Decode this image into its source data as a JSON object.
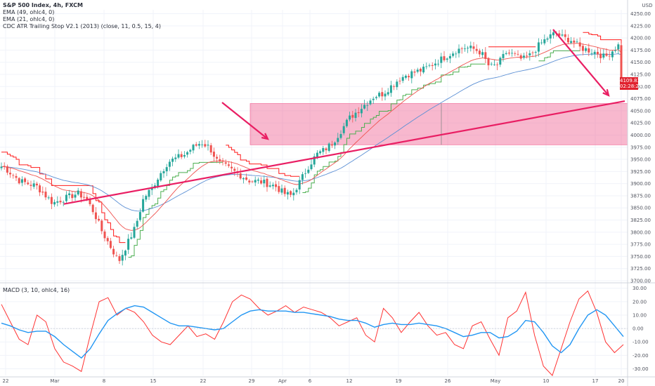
{
  "legend": {
    "main_title": "S&P 500 Index, 4h, FXCM",
    "ema1": "EMA (49, ohlc4, 0)",
    "ema2": "EMA (21, ohlc4, 0)",
    "atr": "CDC ATR Trailing Stop V2.1 (2013) (close, 11, 0.5, 15, 4)",
    "macd": "MACD (3, 10, ohlc4, 16)"
  },
  "price_axis": {
    "currency": "USD",
    "ticks": [
      "4250.00",
      "4225.00",
      "4200.00",
      "4175.00",
      "4150.00",
      "4125.00",
      "4100.00",
      "4075.00",
      "4050.00",
      "4025.00",
      "4000.00",
      "3975.00",
      "3950.00",
      "3925.00",
      "3900.00",
      "3875.00",
      "3850.00",
      "3825.00",
      "3800.00",
      "3775.00",
      "3750.00",
      "3725.00",
      "3700.00"
    ]
  },
  "macd_axis": {
    "ticks": [
      "30.00",
      "20.00",
      "10.00",
      "0.00",
      "-10.00",
      "-20.00",
      "-30.00"
    ]
  },
  "time_axis": {
    "ticks": [
      "22",
      "Mar",
      "8",
      "15",
      "22",
      "29",
      "Apr",
      "6",
      "12",
      "19",
      "26",
      "May",
      "10",
      "17",
      "20"
    ]
  },
  "last_price": {
    "value": "4109.83",
    "countdown": "02:28:27"
  },
  "colors": {
    "candle_up": "#26a69a",
    "candle_down": "#ef5350",
    "ema49": "#5b8fd4",
    "ema21": "#ef5350",
    "atr_bull": "#4caf50",
    "atr_bear": "#ff1a1a",
    "annotation": "#e91e63",
    "zone": "#f06292",
    "macd_line": "#ff3333",
    "signal_line": "#2196f3",
    "price_badge": "#e0212e"
  },
  "chart_data": [
    {
      "type": "candlestick",
      "title": "S&P 500 Index, 4h, FXCM",
      "xlabel": "",
      "ylabel": "USD",
      "ylim": [
        3700,
        4260
      ],
      "x_ticks": [
        "22",
        "Mar",
        "8",
        "15",
        "22",
        "29",
        "Apr",
        "6",
        "12",
        "19",
        "26",
        "May",
        "10",
        "17",
        "20"
      ],
      "close_path": [
        [
          "Feb 20",
          3935
        ],
        [
          "Feb 22",
          3905
        ],
        [
          "Feb 24",
          3895
        ],
        [
          "Feb 26",
          3860
        ],
        [
          "Mar 1",
          3880
        ],
        [
          "Mar 2",
          3870
        ],
        [
          "Mar 3",
          3840
        ],
        [
          "Mar 4",
          3800
        ],
        [
          "Mar 5",
          3770
        ],
        [
          "Mar 6",
          3740
        ],
        [
          "Mar 8",
          3810
        ],
        [
          "Mar 9",
          3870
        ],
        [
          "Mar 10",
          3890
        ],
        [
          "Mar 11",
          3920
        ],
        [
          "Mar 12",
          3945
        ],
        [
          "Mar 14",
          3960
        ],
        [
          "Mar 15",
          3975
        ],
        [
          "Mar 16",
          3985
        ],
        [
          "Mar 17",
          3975
        ],
        [
          "Mar 18",
          3945
        ],
        [
          "Mar 19",
          3935
        ],
        [
          "Mar 20",
          3925
        ],
        [
          "Mar 21",
          3915
        ],
        [
          "Mar 22",
          3905
        ],
        [
          "Mar 23",
          3905
        ],
        [
          "Mar 24",
          3900
        ],
        [
          "Mar 25",
          3895
        ],
        [
          "Mar 26",
          3880
        ],
        [
          "Mar 27",
          3875
        ],
        [
          "Mar 28",
          3905
        ],
        [
          "Mar 29",
          3935
        ],
        [
          "Mar 30",
          3960
        ],
        [
          "Mar 31",
          3970
        ],
        [
          "Apr 1",
          3985
        ],
        [
          "Apr 2",
          4010
        ],
        [
          "Apr 3",
          4035
        ],
        [
          "Apr 5",
          4065
        ],
        [
          "Apr 6",
          4080
        ],
        [
          "Apr 7",
          4085
        ],
        [
          "Apr 8",
          4100
        ],
        [
          "Apr 9",
          4115
        ],
        [
          "Apr 10",
          4125
        ],
        [
          "Apr 12",
          4135
        ],
        [
          "Apr 13",
          4145
        ],
        [
          "Apr 14",
          4155
        ],
        [
          "Apr 15",
          4165
        ],
        [
          "Apr 16",
          4175
        ],
        [
          "Apr 17",
          4180
        ],
        [
          "Apr 18",
          4178
        ],
        [
          "Apr 19",
          4170
        ],
        [
          "Apr 20",
          4140
        ],
        [
          "Apr 21",
          4145
        ],
        [
          "Apr 22",
          4170
        ],
        [
          "Apr 23",
          4165
        ],
        [
          "Apr 24",
          4155
        ],
        [
          "Apr 25",
          4165
        ],
        [
          "Apr 26",
          4185
        ],
        [
          "Apr 27",
          4200
        ],
        [
          "Apr 28",
          4210
        ],
        [
          "Apr 29",
          4200
        ],
        [
          "Apr 30",
          4195
        ],
        [
          "May 1",
          4180
        ],
        [
          "May 2",
          4175
        ],
        [
          "May 3",
          4170
        ],
        [
          "May 4",
          4160
        ],
        [
          "May 5",
          4175
        ],
        [
          "May 6",
          4190
        ],
        [
          "May 7",
          4220
        ],
        [
          "May 8",
          4235
        ],
        [
          "May 9",
          4230
        ],
        [
          "May 10",
          4205
        ],
        [
          "May 11",
          4165
        ],
        [
          "May 12",
          4120
        ],
        [
          "May 13",
          4080
        ],
        [
          "May 14",
          4105
        ],
        [
          "May 15",
          4150
        ],
        [
          "May 16",
          4160
        ],
        [
          "May 17",
          4175
        ],
        [
          "May 18",
          4145
        ],
        [
          "May 19",
          4100
        ],
        [
          "May 20",
          4109.83
        ]
      ],
      "support_zone": {
        "from": 3980,
        "to": 4065
      },
      "trendline": {
        "start": [
          "Feb 28",
          3866
        ],
        "end": [
          "May 20",
          4070
        ]
      },
      "annotations": [
        "down-arrow Mar 28",
        "down-arrow May 16",
        "range arrow Apr 26"
      ],
      "last_value": 4109.83
    },
    {
      "type": "line",
      "title": "MACD (3, 10, ohlc4, 16)",
      "ylim": [
        -35,
        33
      ],
      "series": [
        {
          "name": "MACD",
          "values": [
            18,
            5,
            -8,
            -12,
            10,
            5,
            -15,
            -25,
            -28,
            -32,
            -5,
            20,
            23,
            10,
            15,
            12,
            5,
            -5,
            -10,
            -12,
            -5,
            2,
            -6,
            -4,
            -8,
            5,
            20,
            25,
            22,
            15,
            10,
            13,
            17,
            12,
            16,
            14,
            12,
            8,
            2,
            5,
            8,
            -5,
            -10,
            15,
            8,
            -3,
            5,
            12,
            2,
            -5,
            -3,
            -12,
            -15,
            2,
            5,
            -8,
            -20,
            8,
            13,
            27,
            -5,
            -28,
            -35,
            -15,
            5,
            22,
            28,
            12,
            -10,
            -18,
            -12
          ]
        },
        {
          "name": "Signal",
          "values": [
            4,
            2,
            -1,
            -3,
            -2,
            -2,
            -6,
            -12,
            -17,
            -22,
            -15,
            -4,
            6,
            11,
            15,
            17,
            16,
            12,
            8,
            4,
            2,
            2,
            1,
            0,
            -1,
            0,
            5,
            10,
            13,
            14,
            13,
            13,
            13,
            12,
            12,
            11,
            10,
            9,
            7,
            6,
            6,
            4,
            1,
            3,
            4,
            3,
            3,
            4,
            3,
            2,
            0,
            -3,
            -6,
            -5,
            -3,
            -3,
            -7,
            -6,
            -2,
            6,
            5,
            -3,
            -13,
            -18,
            -12,
            0,
            10,
            14,
            10,
            2,
            -6
          ]
        }
      ]
    }
  ]
}
